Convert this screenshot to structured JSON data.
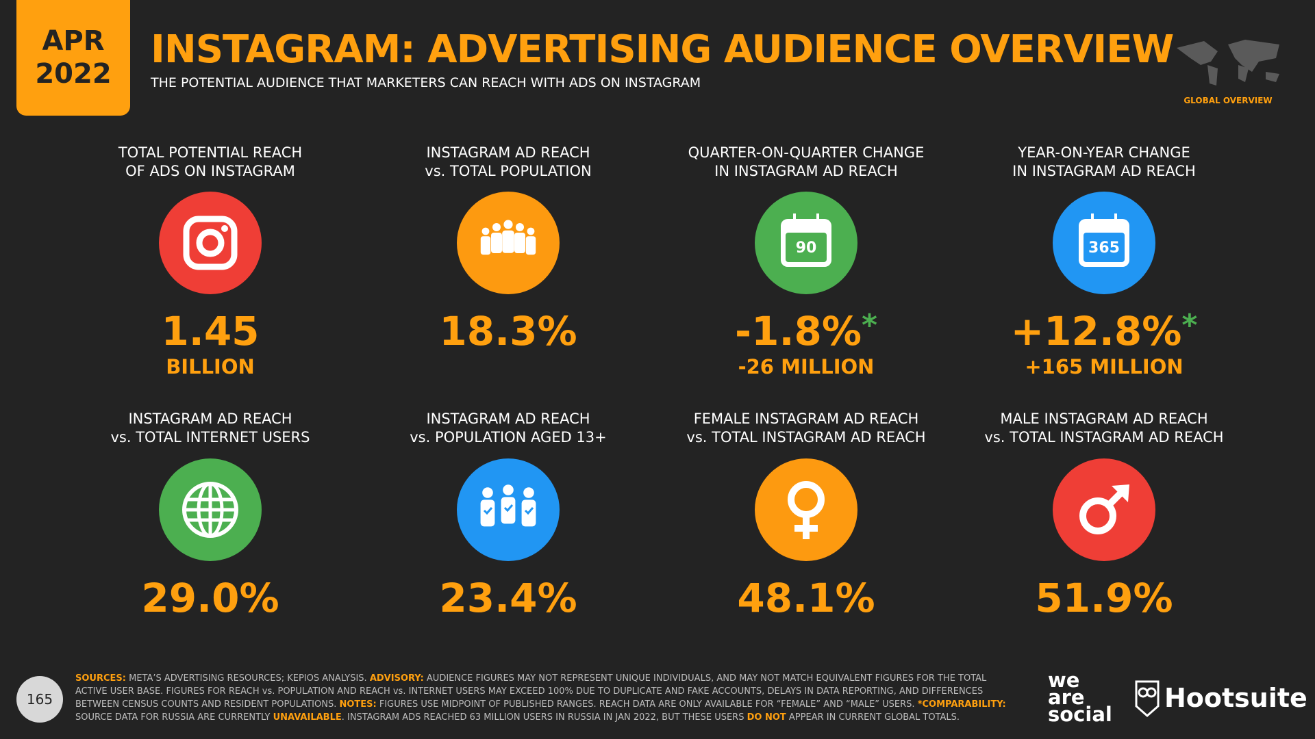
{
  "header": {
    "date_month": "APR",
    "date_year": "2022",
    "title": "INSTAGRAM: ADVERTISING AUDIENCE OVERVIEW",
    "subtitle": "THE POTENTIAL AUDIENCE THAT MARKETERS CAN REACH WITH ADS ON INSTAGRAM",
    "badge": "GLOBAL OVERVIEW"
  },
  "tiles": [
    {
      "label": [
        "TOTAL POTENTIAL REACH",
        "OF ADS ON INSTAGRAM"
      ],
      "value": "1.45",
      "sub": "BILLION",
      "color": "#ef3e36"
    },
    {
      "label": [
        "INSTAGRAM AD REACH",
        "vs. TOTAL POPULATION"
      ],
      "value": "18.3%",
      "color": "#fd9a10"
    },
    {
      "label": [
        "QUARTER-ON-QUARTER CHANGE",
        "IN INSTAGRAM AD REACH"
      ],
      "value": "-1.8%",
      "note": "*",
      "sub": "-26 MILLION",
      "icon_text": "90",
      "color": "#4caf50"
    },
    {
      "label": [
        "YEAR-ON-YEAR CHANGE",
        "IN INSTAGRAM AD REACH"
      ],
      "value": "+12.8%",
      "note": "*",
      "sub": "+165 MILLION",
      "icon_text": "365",
      "color": "#2196f3"
    },
    {
      "label": [
        "INSTAGRAM AD REACH",
        "vs. TOTAL INTERNET USERS"
      ],
      "value": "29.0%",
      "color": "#4caf50"
    },
    {
      "label": [
        "INSTAGRAM AD REACH",
        "vs. POPULATION AGED 13+"
      ],
      "value": "23.4%",
      "color": "#2196f3"
    },
    {
      "label": [
        "FEMALE INSTAGRAM AD REACH",
        "vs. TOTAL INSTAGRAM AD REACH"
      ],
      "value": "48.1%",
      "color": "#fd9a10"
    },
    {
      "label": [
        "MALE INSTAGRAM AD REACH",
        "vs. TOTAL INSTAGRAM AD REACH"
      ],
      "value": "51.9%",
      "color": "#ef3e36"
    }
  ],
  "footer": {
    "page": "165",
    "notes": [
      {
        "text": "SOURCES:",
        "highlight": true
      },
      {
        "text": " META’S ADVERTISING RESOURCES; KEPIOS ANALYSIS. ",
        "highlight": false
      },
      {
        "text": "ADVISORY:",
        "highlight": true
      },
      {
        "text": " AUDIENCE FIGURES MAY NOT REPRESENT UNIQUE INDIVIDUALS, AND MAY NOT MATCH EQUIVALENT FIGURES FOR THE TOTAL ACTIVE USER BASE. FIGURES FOR REACH vs. POPULATION AND REACH vs. INTERNET USERS MAY EXCEED 100% DUE TO DUPLICATE AND FAKE ACCOUNTS, DELAYS IN DATA REPORTING, AND DIFFERENCES BETWEEN CENSUS COUNTS AND RESIDENT POPULATIONS. ",
        "highlight": false
      },
      {
        "text": "NOTES:",
        "highlight": true
      },
      {
        "text": " FIGURES USE MIDPOINT OF PUBLISHED RANGES. REACH DATA ARE ONLY AVAILABLE FOR “FEMALE” AND “MALE” USERS. ",
        "highlight": false
      },
      {
        "text": "*COMPARABILITY:",
        "highlight": true
      },
      {
        "text": " SOURCE DATA FOR RUSSIA ARE CURRENTLY ",
        "highlight": false
      },
      {
        "text": "UNAVAILABLE",
        "highlight": true
      },
      {
        "text": ". INSTAGRAM ADS REACHED 63 MILLION USERS IN RUSSIA IN JAN 2022, BUT THESE USERS ",
        "highlight": false
      },
      {
        "text": "DO NOT",
        "highlight": true
      },
      {
        "text": " APPEAR IN CURRENT GLOBAL TOTALS.",
        "highlight": false
      }
    ],
    "logo_words": [
      "we",
      "are",
      "social"
    ],
    "brand": "Hootsuite"
  }
}
